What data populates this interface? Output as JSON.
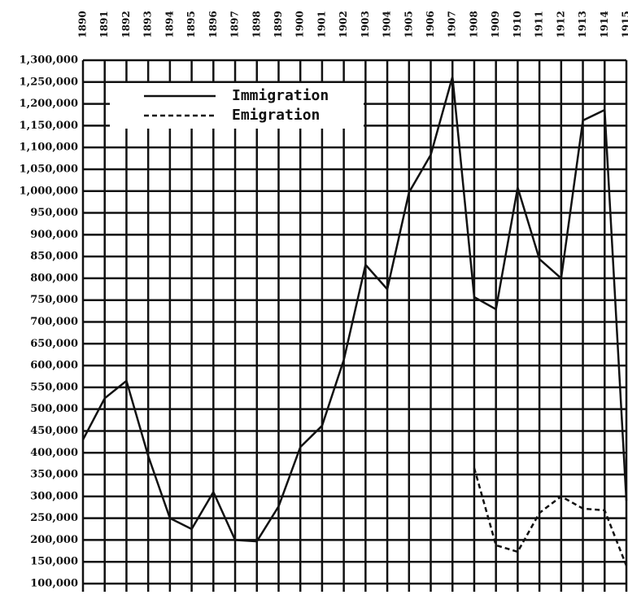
{
  "chart_data": {
    "type": "line",
    "categories": [
      "1890",
      "1891",
      "1892",
      "1893",
      "1894",
      "1895",
      "1896",
      "1897",
      "1898",
      "1899",
      "1900",
      "1901",
      "1902",
      "1903",
      "1904",
      "1905",
      "1906",
      "1907",
      "1908",
      "1909",
      "1910",
      "1911",
      "1912",
      "1913",
      "1914",
      "1915"
    ],
    "series": [
      {
        "name": "Immigration",
        "color": "#111111",
        "dash": false,
        "values": [
          430000,
          525000,
          565000,
          393000,
          250000,
          225000,
          310000,
          200000,
          197000,
          277000,
          413000,
          462000,
          613000,
          831000,
          775000,
          997000,
          1083000,
          1262000,
          757000,
          729000,
          1008000,
          844000,
          800000,
          1162000,
          1186000,
          290000
        ]
      },
      {
        "name": "Emigration",
        "color": "#111111",
        "dash": true,
        "values": [
          null,
          null,
          null,
          null,
          null,
          null,
          null,
          null,
          null,
          null,
          null,
          null,
          null,
          null,
          null,
          null,
          null,
          null,
          365000,
          188000,
          173000,
          262000,
          300000,
          272000,
          268000,
          141000
        ]
      }
    ],
    "ylim": [
      100000,
      1300000
    ],
    "yticks": [
      {
        "value": 100000,
        "label": "100,000"
      },
      {
        "value": 150000,
        "label": "150,000"
      },
      {
        "value": 200000,
        "label": "200,000"
      },
      {
        "value": 250000,
        "label": "250,000"
      },
      {
        "value": 300000,
        "label": "300,000"
      },
      {
        "value": 350000,
        "label": "350,000"
      },
      {
        "value": 400000,
        "label": "400,000"
      },
      {
        "value": 450000,
        "label": "450,000"
      },
      {
        "value": 500000,
        "label": "500,000"
      },
      {
        "value": 550000,
        "label": "550,000"
      },
      {
        "value": 600000,
        "label": "600,000"
      },
      {
        "value": 650000,
        "label": "650,000"
      },
      {
        "value": 700000,
        "label": "700,000"
      },
      {
        "value": 750000,
        "label": "750,000"
      },
      {
        "value": 800000,
        "label": "800,000"
      },
      {
        "value": 850000,
        "label": "850,000"
      },
      {
        "value": 900000,
        "label": "900,000"
      },
      {
        "value": 950000,
        "label": "950,000"
      },
      {
        "value": 1000000,
        "label": "1,000,000"
      },
      {
        "value": 1050000,
        "label": "1,050,000"
      },
      {
        "value": 1100000,
        "label": "1,100,000"
      },
      {
        "value": 1150000,
        "label": "1,150,000"
      },
      {
        "value": 1200000,
        "label": "1,200,000"
      },
      {
        "value": 1250000,
        "label": "1,250,000"
      },
      {
        "value": 1300000,
        "label": "1,300,000"
      }
    ],
    "grid": true,
    "legend": "upper left"
  }
}
